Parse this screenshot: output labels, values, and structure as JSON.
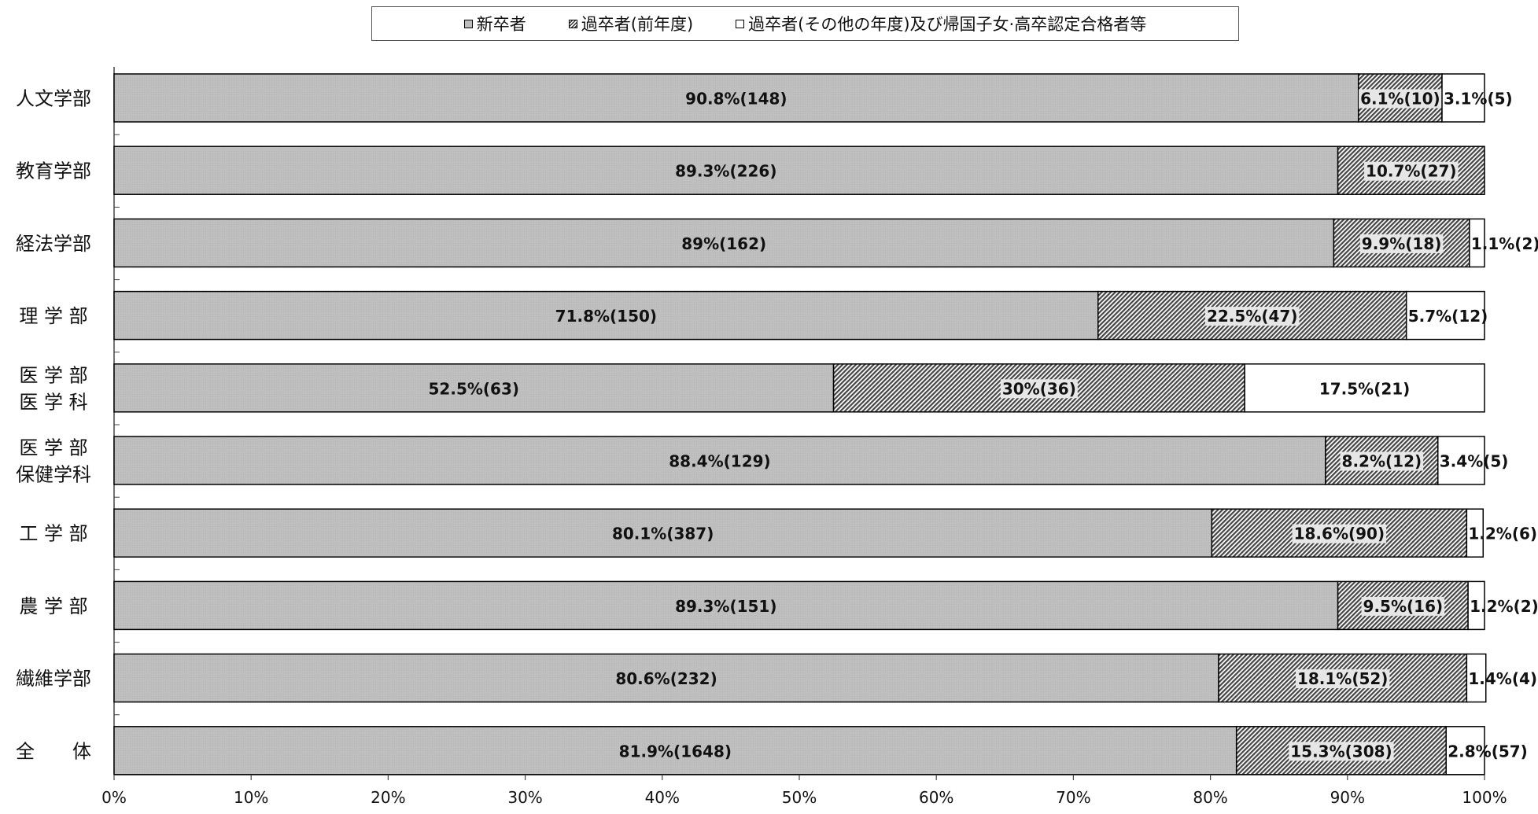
{
  "chart_data": {
    "type": "bar",
    "orientation": "horizontal",
    "stacked": true,
    "categories": [
      "人文学部",
      "教育学部",
      "経法学部",
      "理 学 部",
      "医 学 部\n医 学 科",
      "医 学 部\n保健学科",
      "工 学 部",
      "農 学 部",
      "繊維学部",
      "全　　体"
    ],
    "series": [
      {
        "name": "新卒者",
        "color": "#bdbdbd",
        "values": [
          90.8,
          89.3,
          89,
          71.8,
          52.5,
          88.4,
          80.1,
          89.3,
          80.6,
          81.9
        ],
        "labels": [
          "90.8%(148)",
          "89.3%(226)",
          "89%(162)",
          "71.8%(150)",
          "52.5%(63)",
          "88.4%(129)",
          "80.1%(387)",
          "89.3%(151)",
          "80.6%(232)",
          "81.9%(1648)"
        ]
      },
      {
        "name": "過卒者(前年度)",
        "color": "#333333",
        "values": [
          6.1,
          10.7,
          9.9,
          22.5,
          30,
          8.2,
          18.6,
          9.5,
          18.1,
          15.3
        ],
        "labels": [
          "6.1%(10)",
          "10.7%(27)",
          "9.9%(18)",
          "22.5%(47)",
          "30%(36)",
          "8.2%(12)",
          "18.6%(90)",
          "9.5%(16)",
          "18.1%(52)",
          "15.3%(308)"
        ]
      },
      {
        "name": "過卒者(その他の年度)及び帰国子女·高卒認定合格者等",
        "color": "#ffffff",
        "values": [
          3.1,
          0,
          1.1,
          5.7,
          17.5,
          3.4,
          1.2,
          1.2,
          1.4,
          2.8
        ],
        "labels": [
          "3.1%(5)",
          "",
          "1.1%(2)",
          "5.7%(12)",
          "17.5%(21)",
          "3.4%(5)",
          "1.2%(6)",
          "1.2%(2)",
          "1.4%(4)",
          "2.8%(57)"
        ]
      }
    ],
    "xlim": [
      0,
      100
    ],
    "x_ticks": [
      "0%",
      "10%",
      "20%",
      "30%",
      "40%",
      "50%",
      "60%",
      "70%",
      "80%",
      "90%",
      "100%"
    ],
    "legend_position": "top-center",
    "grid": false
  }
}
